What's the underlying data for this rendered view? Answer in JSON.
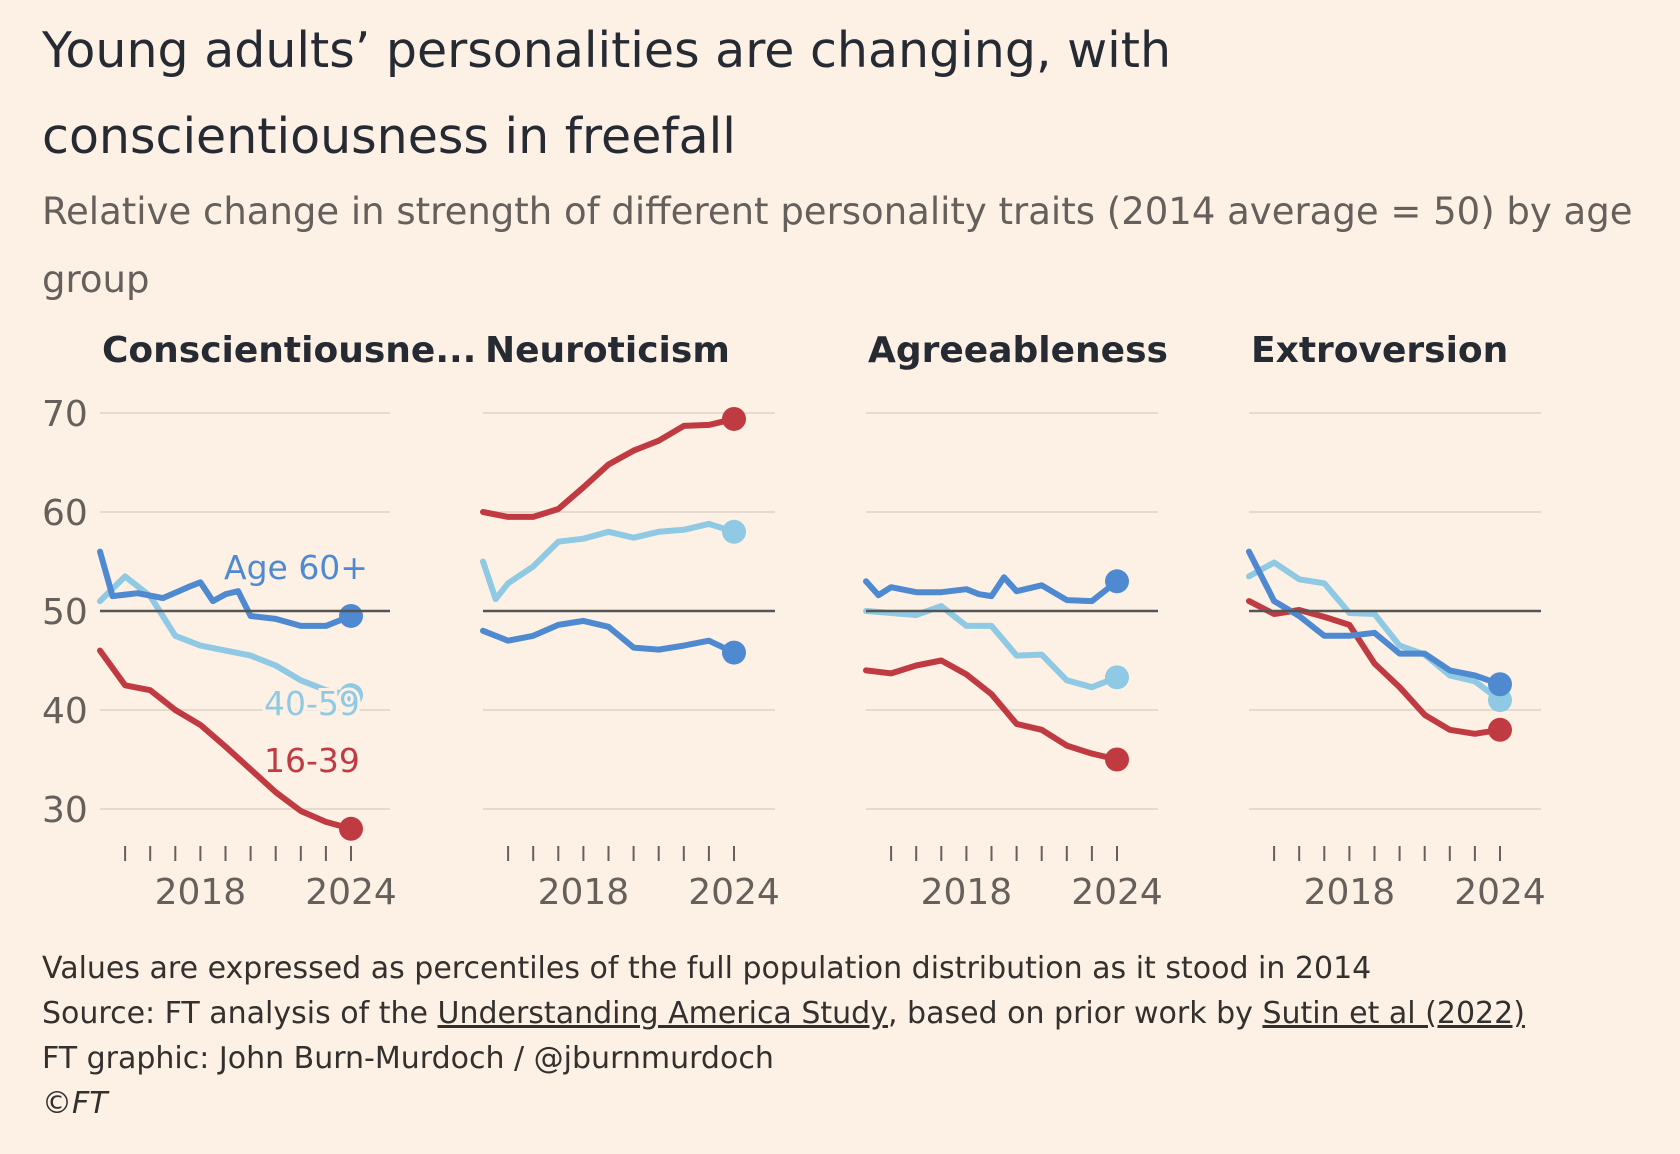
{
  "title": "Young adults’ personalities are changing, with conscientiousness in freefall",
  "subtitle": "Relative change in strength of different personality traits (2014 average = 50) by age group",
  "colors": {
    "age_60_plus": "#4f8ad1",
    "age_40_59": "#8fc9e3",
    "age_16_39": "#c03b41",
    "baseline": "#555555",
    "grid": "#e6d9ce"
  },
  "chart_data": {
    "type": "line",
    "x_ticks": [
      2015,
      2016,
      2017,
      2018,
      2019,
      2020,
      2021,
      2022,
      2023,
      2024
    ],
    "x_tick_labels": [
      "2018",
      "2024"
    ],
    "x_tick_label_values": [
      2018,
      2024
    ],
    "xlim": [
      2014,
      2025
    ],
    "ylim": [
      25,
      72
    ],
    "y_ticks": [
      30,
      40,
      50,
      60,
      70
    ],
    "baseline": 50,
    "panels": [
      {
        "title": "Conscientiousne...",
        "series": [
          {
            "key": "age_60_plus",
            "name": "Age 60+",
            "x": [
              2014,
              2014.5,
              2015.5,
              2016.5,
              2017.5,
              2018,
              2018.5,
              2019,
              2019.5,
              2020,
              2021,
              2022,
              2023,
              2024
            ],
            "values": [
              56,
              51.5,
              51.8,
              51.3,
              52.4,
              52.9,
              51,
              51.7,
              52,
              49.5,
              49.2,
              48.5,
              48.5,
              49.5
            ]
          },
          {
            "key": "age_40_59",
            "name": "40-59",
            "x": [
              2014,
              2015,
              2016,
              2017,
              2018,
              2019,
              2020,
              2021,
              2022,
              2023,
              2024
            ],
            "values": [
              51,
              53.5,
              51.5,
              47.5,
              46.5,
              46,
              45.5,
              44.5,
              43,
              42,
              41.5
            ]
          },
          {
            "key": "age_16_39",
            "name": "16-39",
            "x": [
              2014,
              2015,
              2016,
              2017,
              2018,
              2019,
              2020,
              2021,
              2022,
              2023,
              2024
            ],
            "values": [
              46,
              42.5,
              42,
              40,
              38.5,
              36.3,
              34,
              31.7,
              29.8,
              28.7,
              28
            ]
          }
        ]
      },
      {
        "title": "Neuroticism",
        "series": [
          {
            "key": "age_60_plus",
            "x": [
              2014,
              2015,
              2016,
              2017,
              2018,
              2019,
              2020,
              2021,
              2022,
              2023,
              2024
            ],
            "values": [
              48,
              47,
              47.5,
              48.6,
              49,
              48.4,
              46.3,
              46.1,
              46.5,
              47,
              45.8
            ]
          },
          {
            "key": "age_40_59",
            "x": [
              2014,
              2014.5,
              2015,
              2016,
              2017,
              2018,
              2019,
              2020,
              2021,
              2022,
              2023,
              2024
            ],
            "values": [
              55,
              51.2,
              52.8,
              54.5,
              57,
              57.3,
              58,
              57.4,
              58,
              58.2,
              58.8,
              58
            ]
          },
          {
            "key": "age_16_39",
            "x": [
              2014,
              2015,
              2016,
              2017,
              2018,
              2019,
              2020,
              2021,
              2022,
              2023,
              2024
            ],
            "values": [
              60,
              59.5,
              59.5,
              60.3,
              62.5,
              64.8,
              66.2,
              67.2,
              68.7,
              68.8,
              69.4
            ]
          }
        ]
      },
      {
        "title": "Agreeableness",
        "series": [
          {
            "key": "age_60_plus",
            "x": [
              2014,
              2014.5,
              2015,
              2016,
              2017,
              2018,
              2018.5,
              2019,
              2019.5,
              2020,
              2021,
              2022,
              2023,
              2024
            ],
            "values": [
              53,
              51.6,
              52.4,
              51.9,
              51.9,
              52.2,
              51.7,
              51.5,
              53.4,
              52,
              52.6,
              51.1,
              51,
              53
            ]
          },
          {
            "key": "age_40_59",
            "x": [
              2014,
              2015,
              2016,
              2017,
              2018,
              2019,
              2020,
              2021,
              2022,
              2023,
              2024
            ],
            "values": [
              50,
              49.8,
              49.6,
              50.5,
              48.5,
              48.5,
              45.5,
              45.6,
              43,
              42.3,
              43.3
            ]
          },
          {
            "key": "age_16_39",
            "x": [
              2014,
              2015,
              2016,
              2017,
              2018,
              2019,
              2020,
              2021,
              2022,
              2023,
              2024
            ],
            "values": [
              44,
              43.7,
              44.5,
              45,
              43.6,
              41.6,
              38.6,
              38,
              36.4,
              35.6,
              35
            ]
          }
        ]
      },
      {
        "title": "Extroversion",
        "series": [
          {
            "key": "age_60_plus",
            "x": [
              2014,
              2015,
              2016,
              2017,
              2018,
              2019,
              2020,
              2021,
              2022,
              2023,
              2024
            ],
            "values": [
              56,
              51,
              49.5,
              47.5,
              47.5,
              47.8,
              45.7,
              45.7,
              44,
              43.5,
              42.6
            ]
          },
          {
            "key": "age_40_59",
            "x": [
              2014,
              2015,
              2016,
              2017,
              2018,
              2019,
              2020,
              2021,
              2022,
              2023,
              2024
            ],
            "values": [
              53.5,
              54.9,
              53.2,
              52.8,
              49.8,
              49.7,
              46.5,
              45.6,
              43.5,
              42.9,
              41
            ]
          },
          {
            "key": "age_16_39",
            "x": [
              2014,
              2015,
              2016,
              2017,
              2018,
              2019,
              2020,
              2021,
              2022,
              2023,
              2024
            ],
            "values": [
              51,
              49.7,
              50.1,
              49.4,
              48.6,
              44.7,
              42.3,
              39.5,
              38,
              37.6,
              38
            ]
          }
        ]
      }
    ]
  },
  "footer": {
    "note": "Values are expressed as percentiles of the full population distribution as it stood in 2014",
    "source_prefix": "Source: FT analysis of the ",
    "source_link1": "Understanding America Study",
    "source_middle": ", based on prior work by ",
    "source_link2": "Sutin et al (2022)",
    "credit": "FT graphic: John Burn-Murdoch / @jburnmurdoch",
    "copyright": "©FT"
  }
}
